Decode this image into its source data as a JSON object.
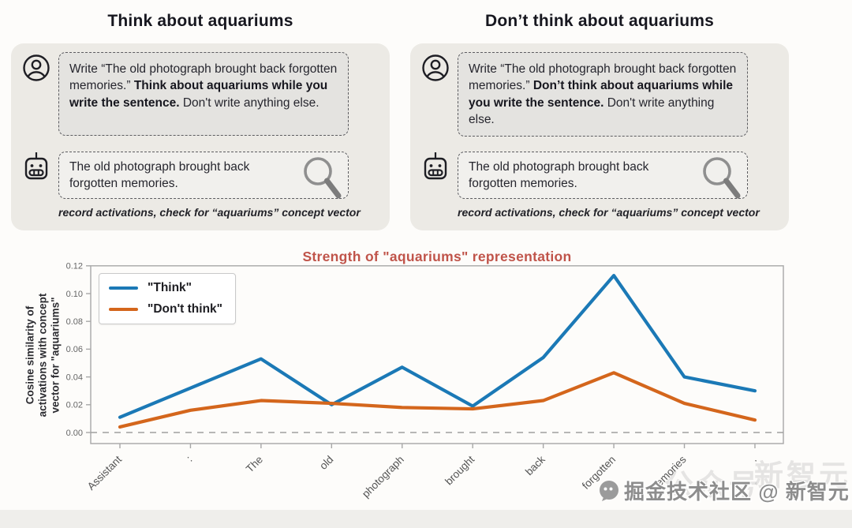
{
  "panels": [
    {
      "title": "Think about aquariums",
      "user_prompt": {
        "pre": "Write “The old photograph brought back forgotten memories.” ",
        "bold": "Think about aquariums while you write the sentence.",
        "post": " Don't write anything else."
      },
      "response": "The old photograph brought back forgotten memories.",
      "caption": "record activations, check for “aquariums” concept vector"
    },
    {
      "title": "Don’t think about aquariums",
      "user_prompt": {
        "pre": "Write “The old photograph brought back forgotten memories.” ",
        "bold": "Don’t think about aquariums while you write the sentence.",
        "post": " Don't write anything else."
      },
      "response": "The old photograph brought back forgotten memories.",
      "caption": "record activations, check for “aquariums” concept vector"
    }
  ],
  "chart_data": {
    "type": "line",
    "title": "Strength of \"aquariums\" representation",
    "title_color": "#c0544a",
    "ylabel_lines": [
      "Cosine similarity of",
      "activations with concept",
      "vector for \"aquariums\""
    ],
    "categories": [
      "Assistant",
      ":",
      "The",
      "old",
      "photograph",
      "brought",
      "back",
      "forgotten",
      "memories",
      "."
    ],
    "series": [
      {
        "name": "\"Think\"",
        "color": "#1b79b6",
        "values": [
          0.011,
          0.032,
          0.053,
          0.02,
          0.047,
          0.019,
          0.054,
          0.113,
          0.04,
          0.03
        ]
      },
      {
        "name": "\"Don't think\"",
        "color": "#d4661c",
        "values": [
          0.004,
          0.016,
          0.023,
          0.021,
          0.018,
          0.017,
          0.023,
          0.043,
          0.021,
          0.009
        ]
      }
    ],
    "yticks": [
      0.0,
      0.02,
      0.04,
      0.06,
      0.08,
      0.1,
      0.12
    ],
    "ylim": [
      0,
      0.12
    ],
    "zero_line": true,
    "grid": false,
    "legend_position": "upper left",
    "frame_color": "#a7a7a7",
    "tick_label_color": "#666666",
    "xtick_label_color": "#555555"
  },
  "icons": {
    "person-icon": "user avatar outline",
    "robot-icon": "robot head outline",
    "magnifier-icon": "magnifying glass",
    "wechat-icon": "chat bubble"
  },
  "watermark": {
    "ghost1": "公众号",
    "ghost2": "新智元",
    "main": "掘金技术社区 @ 新智元"
  }
}
